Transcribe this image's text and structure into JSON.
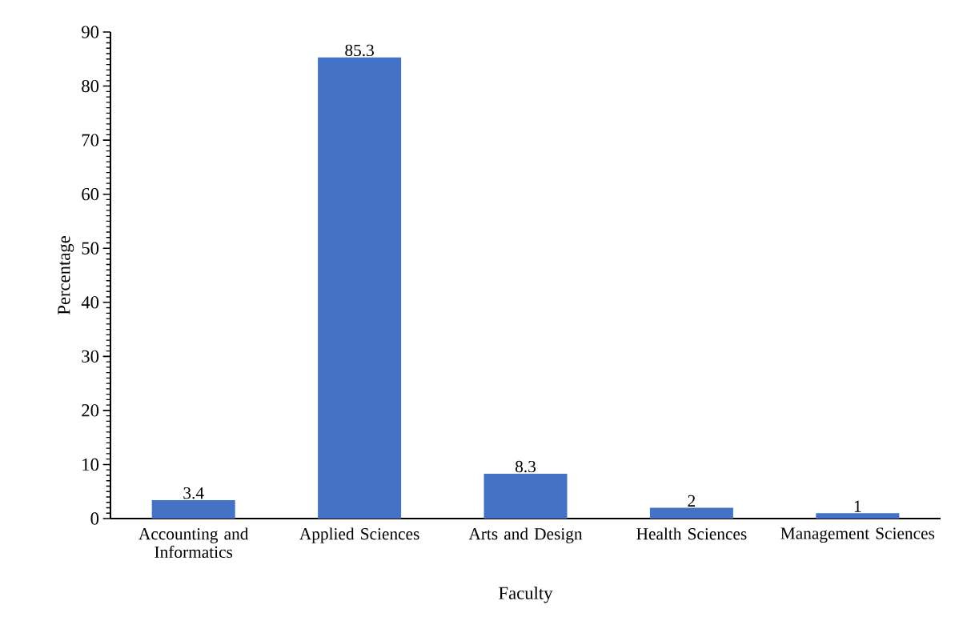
{
  "chart_data": {
    "type": "bar",
    "xlabel": "Faculty",
    "ylabel": "Percentage",
    "categories": [
      "Accounting and Informatics",
      "Applied Sciences",
      "Arts and Design",
      "Health Sciences",
      "Management Sciences"
    ],
    "values": [
      3.4,
      85.3,
      8.3,
      2,
      1
    ],
    "color": "#4472c4",
    "ylim": [
      0,
      90
    ],
    "yticks": [
      0,
      10,
      20,
      30,
      40,
      50,
      60,
      70,
      80,
      90
    ],
    "data_labels": true
  }
}
